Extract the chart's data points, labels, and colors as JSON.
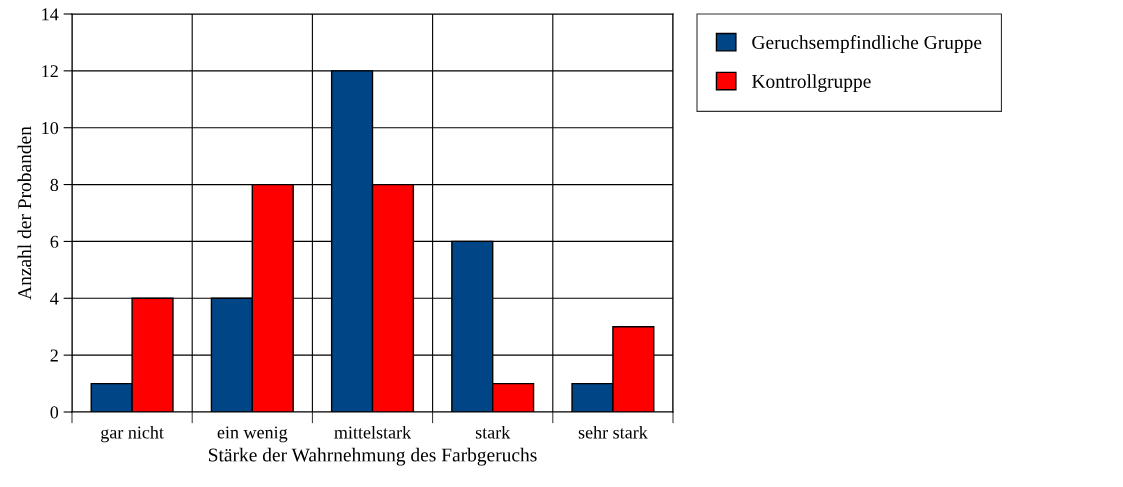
{
  "chart_data": {
    "type": "bar",
    "xlabel": "Stärke der Wahrnehmung des Farbgeruchs",
    "ylabel": "Anzahl der Probanden",
    "categories": [
      "gar nicht",
      "ein wenig",
      "mittelstark",
      "stark",
      "sehr stark"
    ],
    "series": [
      {
        "name": "Geruchsempfindliche Gruppe",
        "color": "#004586",
        "values": [
          1,
          4,
          12,
          6,
          1
        ]
      },
      {
        "name": "Kontrollgruppe",
        "color": "#ff0000",
        "values": [
          4,
          8,
          8,
          1,
          3
        ]
      }
    ],
    "ylim": [
      0,
      14
    ],
    "yticks": [
      0,
      2,
      4,
      6,
      8,
      10,
      12,
      14
    ],
    "grid": true,
    "legend": "top right"
  }
}
